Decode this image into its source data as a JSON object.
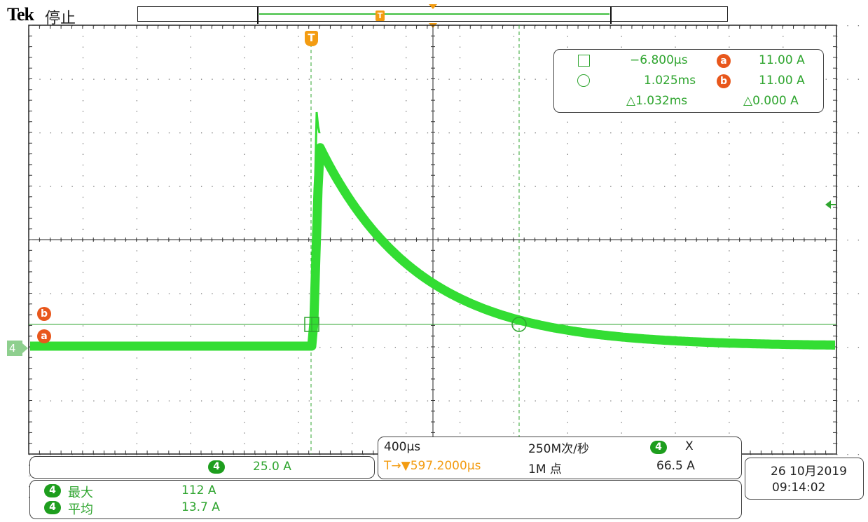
{
  "header": {
    "brand": "Tek",
    "state": "停止",
    "record_trigger_label": "T"
  },
  "channel": {
    "number": "4",
    "color": "#33cc33",
    "scale": "25.0 A"
  },
  "cursor_readout": {
    "cursor_a": {
      "time": "−6.800μs",
      "label": "a",
      "value": "11.00 A"
    },
    "cursor_b": {
      "time": "1.025ms",
      "label": "b",
      "value": "11.00 A"
    },
    "delta_time": "△1.032ms",
    "delta_value": "△0.000 A"
  },
  "markers": {
    "trigger_label": "T",
    "cursor_b": "b",
    "cursor_a": "a",
    "channel_ref": "4"
  },
  "horizontal": {
    "timebase": "400μs",
    "sample_rate": "250M次/秒",
    "trigger_position": "T→▼597.2000μs",
    "record_length": "1M 点",
    "trigger_channel": "4",
    "trigger_coupling": "X",
    "trigger_level": "66.5 A"
  },
  "measurements": [
    {
      "channel": "4",
      "label": "最大",
      "value": "112 A"
    },
    {
      "channel": "4",
      "label": "平均",
      "value": "13.7 A"
    }
  ],
  "datetime": {
    "date": "26 10月2019",
    "time": "09:14:02"
  }
}
